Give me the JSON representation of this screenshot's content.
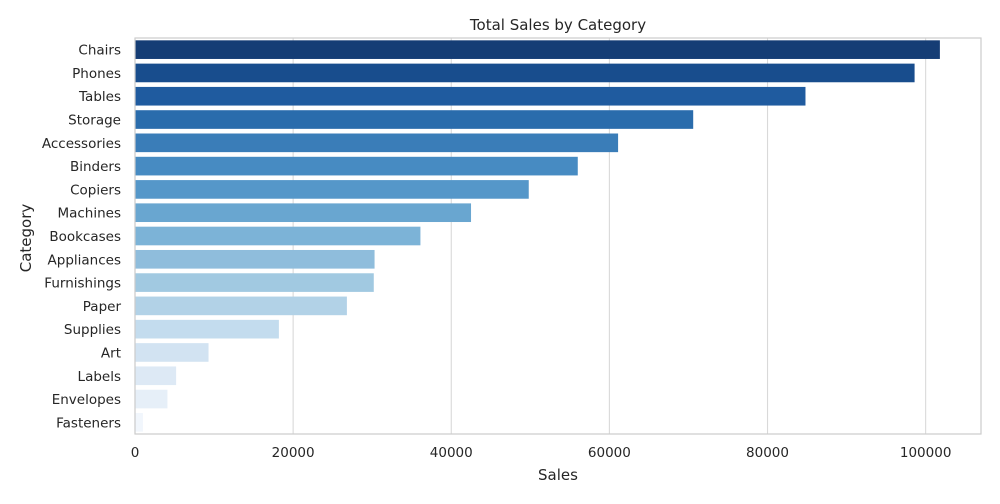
{
  "chart_data": {
    "type": "bar",
    "orientation": "horizontal",
    "title": "Total Sales by Category",
    "xlabel": "Sales",
    "ylabel": "Category",
    "xlim": [
      0,
      107000
    ],
    "xticks": [
      0,
      20000,
      40000,
      60000,
      80000,
      100000
    ],
    "xtick_labels": [
      "0",
      "20000",
      "40000",
      "60000",
      "80000",
      "100000"
    ],
    "grid": "vertical",
    "categories": [
      "Chairs",
      "Phones",
      "Tables",
      "Storage",
      "Accessories",
      "Binders",
      "Copiers",
      "Machines",
      "Bookcases",
      "Appliances",
      "Furnishings",
      "Paper",
      "Supplies",
      "Art",
      "Labels",
      "Envelopes",
      "Fasteners"
    ],
    "values": [
      101800,
      98600,
      84800,
      70600,
      61100,
      56000,
      49800,
      42500,
      36100,
      30300,
      30200,
      26800,
      18200,
      9300,
      5200,
      4100,
      1000
    ],
    "colors": [
      "#153d75",
      "#184d8d",
      "#1f5b9f",
      "#2a6cac",
      "#3a7db8",
      "#478bc2",
      "#5597c9",
      "#69a6d0",
      "#7cb3d7",
      "#8fbddc",
      "#a1c9e1",
      "#b2d2e7",
      "#c3dcee",
      "#d2e3f2",
      "#dde9f5",
      "#e6eff8",
      "#f1f6fc"
    ]
  }
}
